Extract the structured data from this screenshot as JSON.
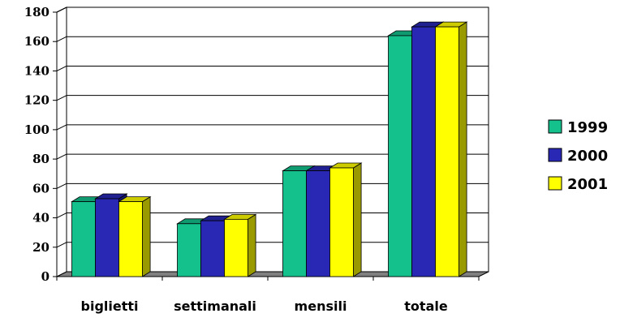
{
  "chart_data": {
    "type": "bar",
    "title": "",
    "xlabel": "",
    "ylabel": "",
    "categories": [
      "biglietti",
      "settimanali",
      "mensili",
      "totale"
    ],
    "series": [
      {
        "name": "1999",
        "values": [
          51,
          36,
          72,
          164
        ],
        "color": "#14c18c"
      },
      {
        "name": "2000",
        "values": [
          53,
          38,
          72,
          170
        ],
        "color": "#2828b4"
      },
      {
        "name": "2001",
        "values": [
          51,
          39,
          74,
          170
        ],
        "color": "#ffff00"
      }
    ],
    "ylim": [
      0,
      180
    ],
    "yticks": [
      0,
      20,
      40,
      60,
      80,
      100,
      120,
      140,
      160,
      180
    ],
    "grid": true,
    "legend": "right",
    "style": "3d-column"
  }
}
